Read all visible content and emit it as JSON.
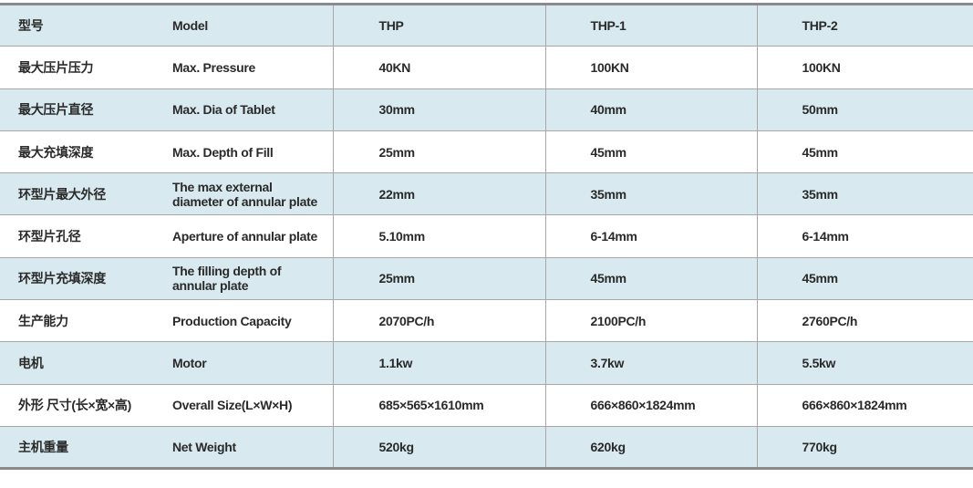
{
  "table": {
    "rows": [
      {
        "zh": "型号",
        "en": "Model",
        "thp": "THP",
        "thp1": "THP-1",
        "thp2": "THP-2"
      },
      {
        "zh": "最大压片压力",
        "en": "Max. Pressure",
        "thp": "40KN",
        "thp1": "100KN",
        "thp2": "100KN"
      },
      {
        "zh": "最大压片直径",
        "en": "Max. Dia of Tablet",
        "thp": "30mm",
        "thp1": "40mm",
        "thp2": "50mm"
      },
      {
        "zh": "最大充填深度",
        "en": "Max. Depth of Fill",
        "thp": "25mm",
        "thp1": "45mm",
        "thp2": "45mm"
      },
      {
        "zh": "环型片最大外径",
        "en": "The max external diameter of annular plate",
        "thp": "22mm",
        "thp1": "35mm",
        "thp2": "35mm"
      },
      {
        "zh": "环型片孔径",
        "en": "Aperture of annular plate",
        "thp": "5.10mm",
        "thp1": "6-14mm",
        "thp2": "6-14mm"
      },
      {
        "zh": "环型片充填深度",
        "en": "The filling depth of annular plate",
        "thp": "25mm",
        "thp1": "45mm",
        "thp2": "45mm"
      },
      {
        "zh": "生产能力",
        "en": "Production Capacity",
        "thp": "2070PC/h",
        "thp1": "2100PC/h",
        "thp2": "2760PC/h"
      },
      {
        "zh": "电机",
        "en": "Motor",
        "thp": "1.1kw",
        "thp1": "3.7kw",
        "thp2": "5.5kw"
      },
      {
        "zh": "外形 尺寸(长×宽×高)",
        "en": "Overall Size(L×W×H)",
        "thp": "685×565×1610mm",
        "thp1": "666×860×1824mm",
        "thp2": "666×860×1824mm"
      },
      {
        "zh": "主机重量",
        "en": "Net Weight",
        "thp": "520kg",
        "thp1": "620kg",
        "thp2": "770kg"
      }
    ],
    "colors": {
      "band": "#d8eaf0",
      "text": "#2a2a2a",
      "rule": "#a8a8a8"
    }
  }
}
